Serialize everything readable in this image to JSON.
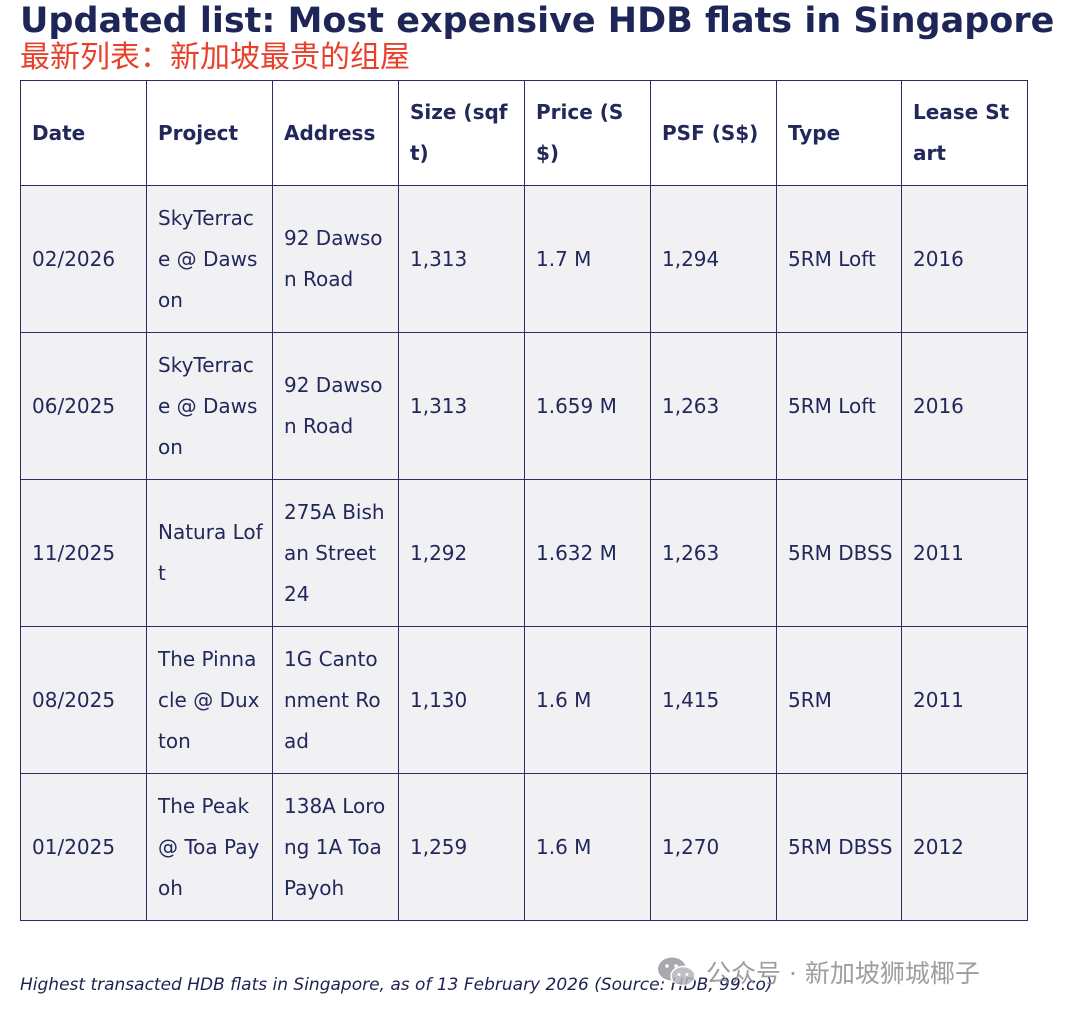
{
  "title": "Updated list: Most expensive HDB flats in Singapore",
  "subtitle": "最新列表：新加坡最贵的组屋",
  "table": {
    "headers": [
      "Date",
      "Project",
      "Address",
      "Size (sqft)",
      "Price (S$)",
      "PSF (S$)",
      "Type",
      "Lease Start"
    ],
    "rows": [
      [
        "02/2026",
        "SkyTerrace @ Dawson",
        "92 Dawson Road",
        "1,313",
        "1.7 M",
        "1,294",
        "5RM Loft",
        "2016"
      ],
      [
        "06/2025",
        "SkyTerrace @ Dawson",
        "92 Dawson Road",
        "1,313",
        "1.659 M",
        "1,263",
        "5RM Loft",
        "2016"
      ],
      [
        "11/2025",
        "Natura Loft",
        "275A Bishan Street 24",
        "1,292",
        "1.632 M",
        "1,263",
        "5RM DBSS",
        "2011"
      ],
      [
        "08/2025",
        "The Pinnacle @ Duxton",
        "1G Cantonment Road",
        "1,130",
        "1.6 M",
        "1,415",
        "5RM",
        "2011"
      ],
      [
        "01/2025",
        "The Peak @ Toa Payoh",
        "138A Lorong 1A Toa Payoh",
        "1,259",
        "1.6 M",
        "1,270",
        "5RM DBSS",
        "2012"
      ]
    ]
  },
  "caption": "Highest transacted HDB flats in Singapore, as of 13 February 2026 (Source: HDB, 99.co)",
  "watermark": {
    "icon": "wechat-icon",
    "text": "公众号 · 新加坡狮城椰子"
  }
}
